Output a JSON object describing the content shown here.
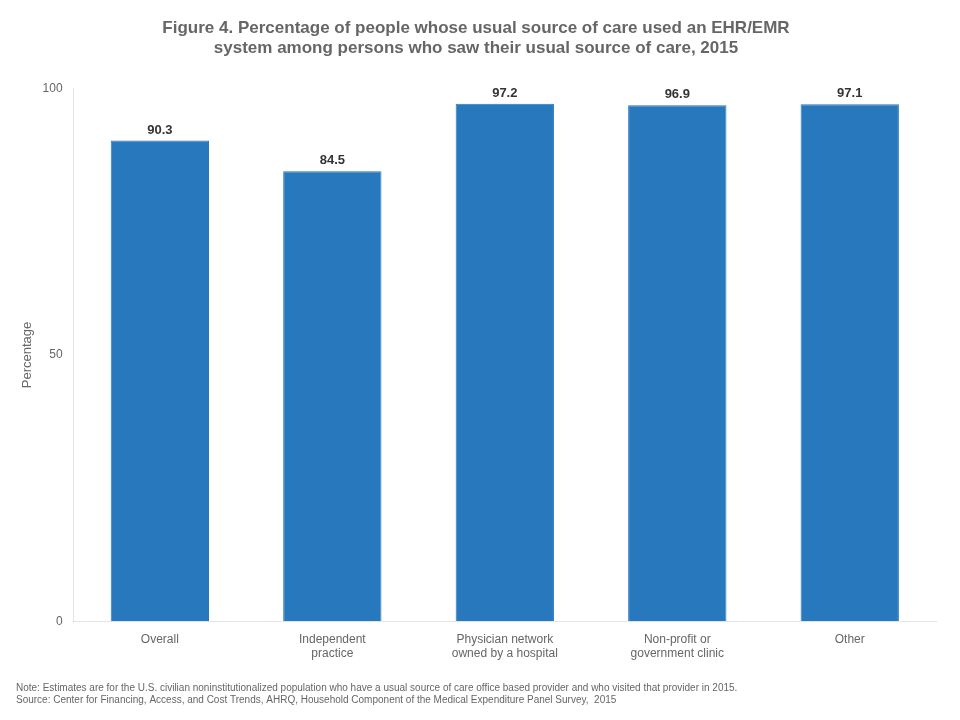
{
  "chart_data": {
    "type": "bar",
    "title": [
      "Figure 4. Percentage of people whose usual source of care used an EHR/EMR",
      "system among persons who saw their usual source of care, 2015"
    ],
    "categories": [
      "Overall",
      "Independent\npractice",
      "Physician network\nowned by a hospital",
      "Non-profit or\ngovernment clinic",
      "Other"
    ],
    "values": [
      90.3,
      84.5,
      97.2,
      96.9,
      97.1
    ],
    "color": "#2878be",
    "ylabel": "Percentage",
    "ylim": [
      0,
      100
    ],
    "yticks": [
      0,
      50,
      100
    ],
    "grid": false,
    "data_labels": true,
    "annotations": [
      "Note: Estimates are for the U.S. civilian noninstitutionalized population who have a usual source of care office based provider and who visited that provider in 2015.",
      "Source: Center for Financing, Access, and Cost Trends, AHRQ, Household Component of the Medical Expenditure Panel Survey,  2015"
    ]
  }
}
